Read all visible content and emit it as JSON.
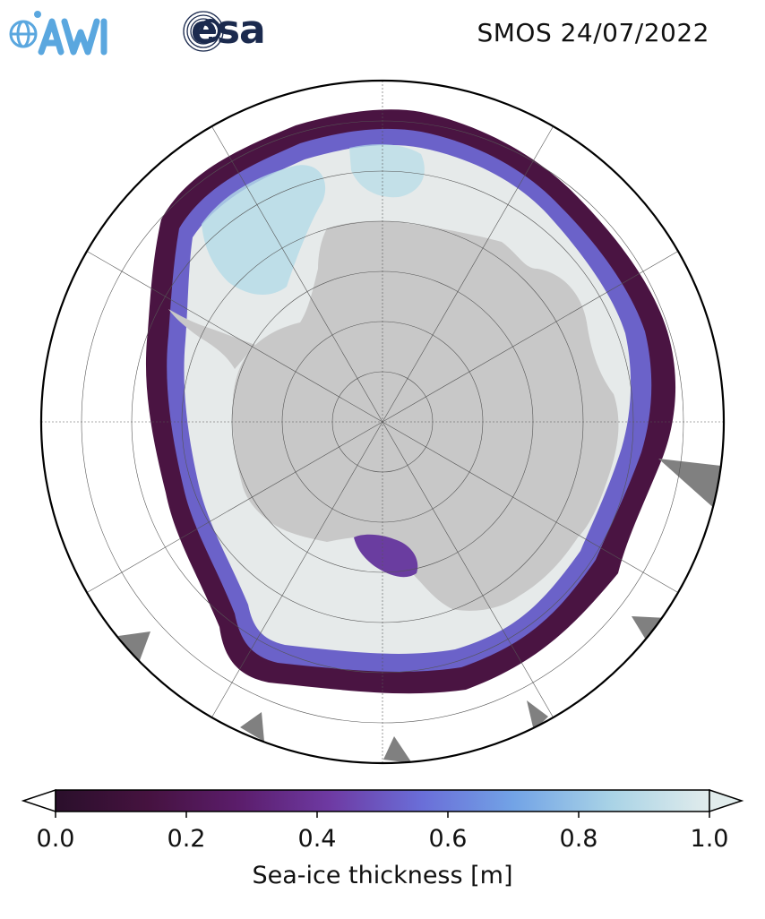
{
  "header": {
    "title": "SMOS 24/07/2022",
    "logos": [
      {
        "name": "AWI",
        "text": "AWI",
        "color": "#5aa7df"
      },
      {
        "name": "esa",
        "text": "esa",
        "color": "#1b2a4e"
      }
    ]
  },
  "map": {
    "projection": "south-polar-stereographic",
    "region": "Antarctica",
    "land_color": "#c8c8c8",
    "grey_patches_color": "#808080",
    "graticule": "dashed"
  },
  "colorbar": {
    "label": "Sea-ice thickness [m]",
    "min": 0.0,
    "max": 1.0,
    "ticks": [
      "0.0",
      "0.2",
      "0.4",
      "0.6",
      "0.8",
      "1.0"
    ],
    "extend": "both",
    "colormap": [
      "#2a0f2b",
      "#45123f",
      "#5b1d6b",
      "#6e3aa3",
      "#6a6ed8",
      "#72a3e6",
      "#a9d3e6",
      "#e1ecec"
    ]
  }
}
